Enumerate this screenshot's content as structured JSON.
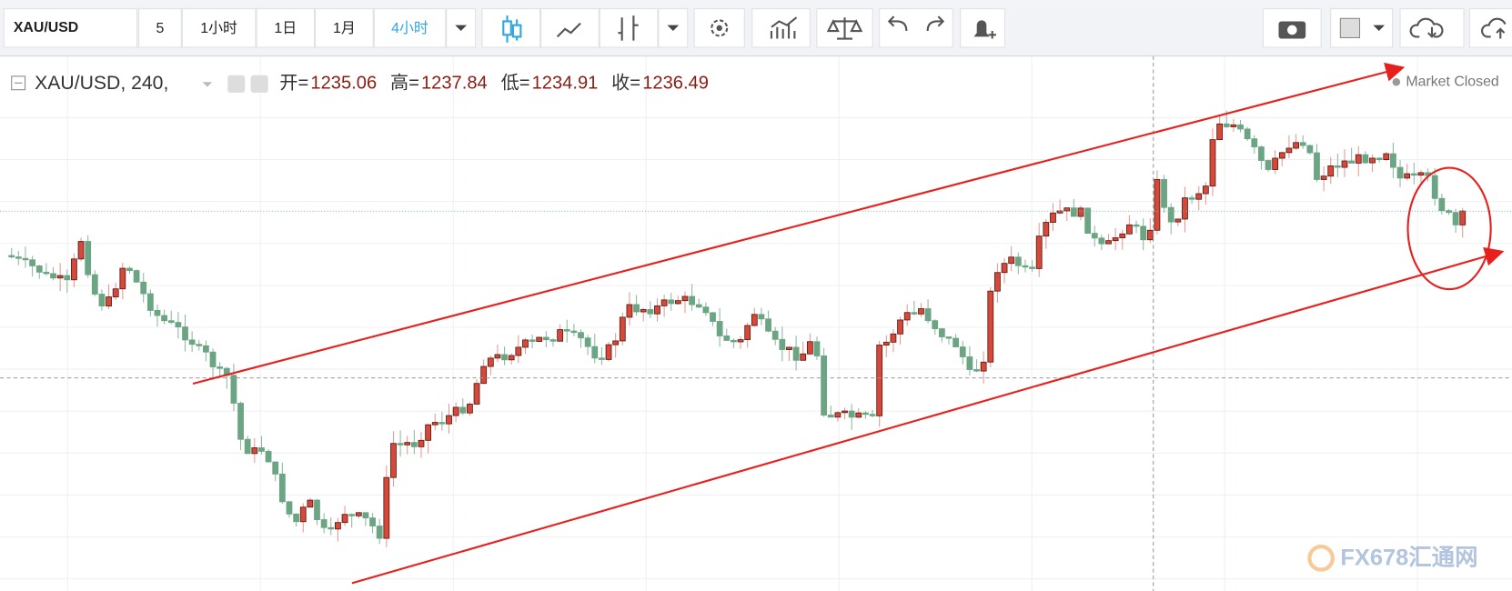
{
  "toolbar": {
    "symbol": "XAU/USD",
    "intervals": [
      "5",
      "1小时",
      "1日",
      "1月",
      "4小时"
    ]
  },
  "legend": {
    "symbol": "XAU/USD, 240,",
    "ohlc": [
      {
        "label": "开=",
        "value": 1235.06
      },
      {
        "label": "高=",
        "value": 1237.84
      },
      {
        "label": "低=",
        "value": 1234.91
      },
      {
        "label": "收=",
        "value": 1236.49
      }
    ]
  },
  "status": "Market Closed",
  "watermark": "FX678汇通网"
}
